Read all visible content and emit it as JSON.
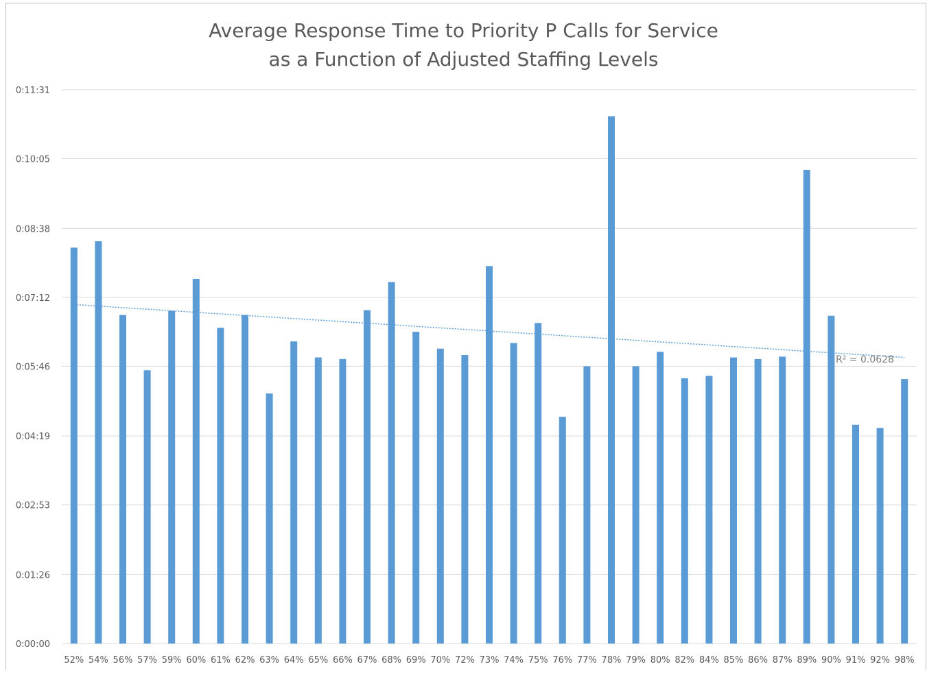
{
  "chart_data": {
    "type": "bar",
    "title_lines": [
      "Average Response Time to Priority P Calls for Service",
      "as a Function of Adjusted Staffing Levels"
    ],
    "xlabel": "",
    "ylabel": "",
    "y_unit": "seconds",
    "ylim": [
      0,
      691
    ],
    "y_ticks": [
      0,
      86,
      173,
      259,
      346,
      432,
      518,
      605,
      691
    ],
    "y_tick_labels": [
      "0:00:00",
      "0:01:26",
      "0:02:53",
      "0:04:19",
      "0:05:46",
      "0:07:12",
      "0:08:38",
      "0:10:05",
      "0:11:31"
    ],
    "categories": [
      "52%",
      "54%",
      "56%",
      "57%",
      "59%",
      "60%",
      "61%",
      "62%",
      "63%",
      "64%",
      "65%",
      "66%",
      "67%",
      "68%",
      "69%",
      "70%",
      "72%",
      "73%",
      "74%",
      "75%",
      "76%",
      "77%",
      "78%",
      "79%",
      "80%",
      "82%",
      "84%",
      "85%",
      "86%",
      "87%",
      "89%",
      "90%",
      "91%",
      "92%",
      "98%"
    ],
    "values": [
      494,
      502,
      410,
      341,
      415,
      455,
      394,
      410,
      312,
      377,
      357,
      355,
      416,
      451,
      389,
      368,
      360,
      471,
      375,
      400,
      283,
      346,
      658,
      346,
      364,
      331,
      334,
      357,
      355,
      358,
      591,
      409,
      273,
      269,
      330
    ],
    "trendline": {
      "type": "linear",
      "start": 423,
      "end": 357,
      "r2_label": "R² = 0.0628"
    },
    "grid": true,
    "legend": "none",
    "bar_color": "#5b9bd5",
    "trend_color": "#5b9bd5",
    "grid_color": "#d9d9d9"
  }
}
